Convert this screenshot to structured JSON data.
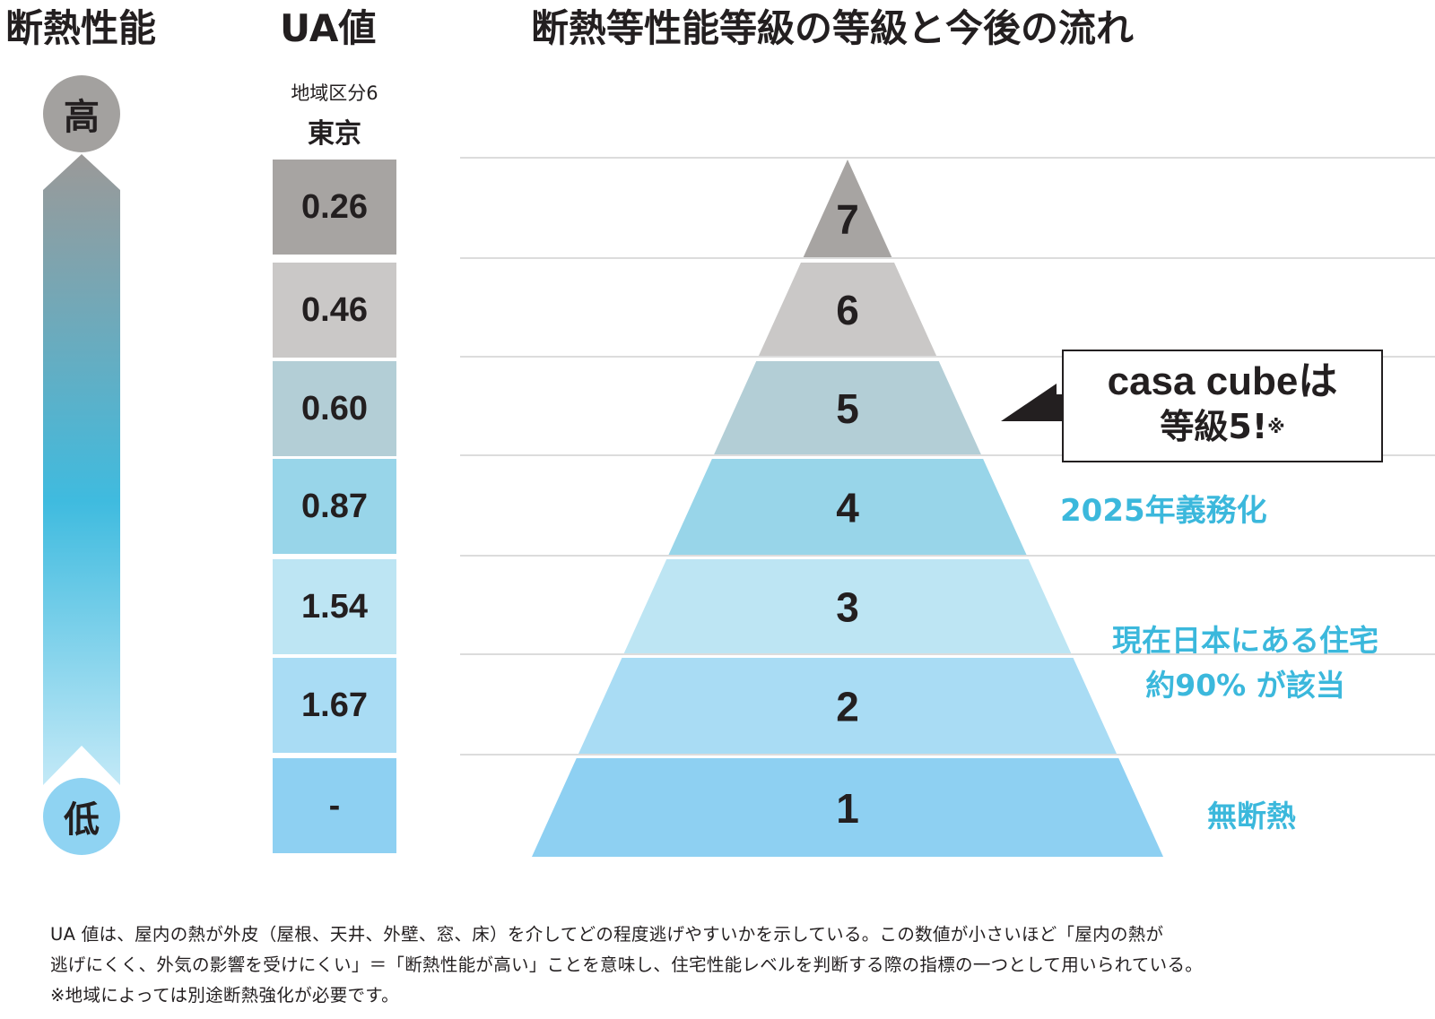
{
  "headers": {
    "performance": "断熱性能",
    "ua": "UA値",
    "main": "断熱等性能等級の等級と今後の流れ"
  },
  "scale": {
    "high": "高",
    "low": "低"
  },
  "ua_column": {
    "region": "地域区分6",
    "city": "東京",
    "values": [
      "0.26",
      "0.46",
      "0.60",
      "0.87",
      "1.54",
      "1.67",
      "-"
    ]
  },
  "pyramid": {
    "levels": [
      {
        "grade": "7",
        "color": "#a7a4a2"
      },
      {
        "grade": "6",
        "color": "#cac8c7"
      },
      {
        "grade": "5",
        "color": "#b3ced6"
      },
      {
        "grade": "4",
        "color": "#98d5e9"
      },
      {
        "grade": "3",
        "color": "#bde5f3"
      },
      {
        "grade": "2",
        "color": "#a9dcf4"
      },
      {
        "grade": "1",
        "color": "#8ed0f2"
      }
    ]
  },
  "callout": {
    "line1": "casa cubeは",
    "line2": "等級5!",
    "mark": "※"
  },
  "notes": {
    "grade4": "2025年義務化",
    "grade3_line1": "現在日本にある住宅",
    "grade3_line2": "約90% が該当",
    "grade1": "無断熱"
  },
  "colors": {
    "accent": "#3bb8dc",
    "ink": "#231f20"
  },
  "footer": {
    "line1": "UA 値は、屋内の熱が外皮（屋根、天井、外壁、窓、床）を介してどの程度逃げやすいかを示している。この数値が小さいほど「屋内の熱が",
    "line2": "逃げにくく、外気の影響を受けにくい」＝「断熱性能が高い」ことを意味し、住宅性能レベルを判断する際の指標の一つとして用いられている。",
    "line3": "※地域によっては別途断熱強化が必要です。"
  }
}
